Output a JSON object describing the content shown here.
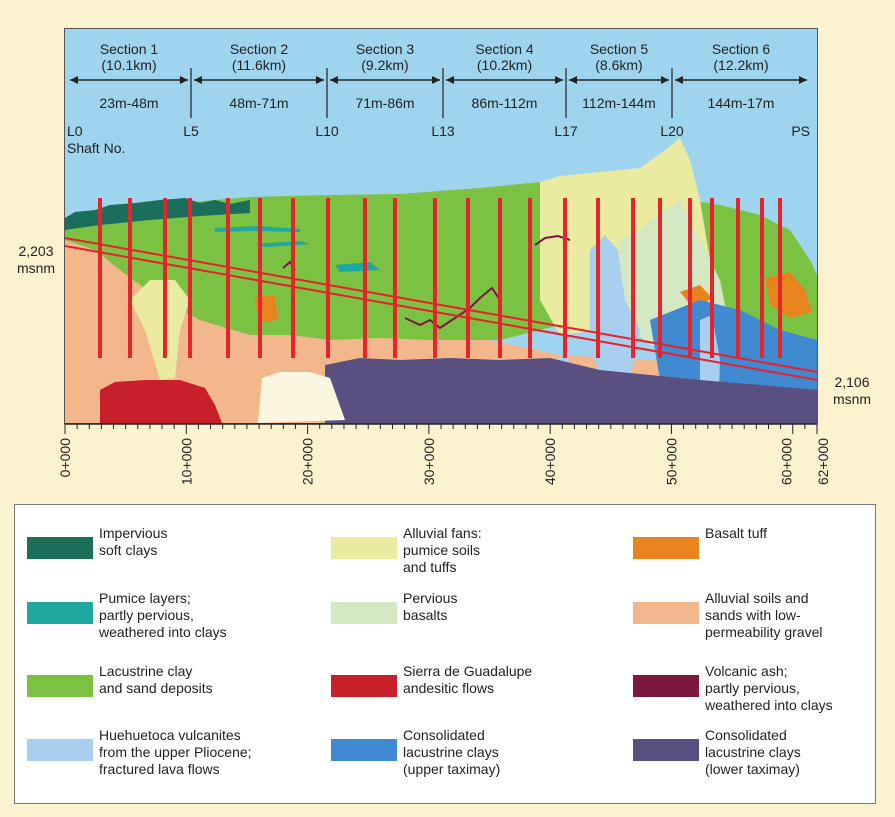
{
  "sections": [
    {
      "name": "Section 1",
      "length": "(10.1km)",
      "depth": "23m-48m"
    },
    {
      "name": "Section 2",
      "length": "(11.6km)",
      "depth": "48m-71m"
    },
    {
      "name": "Section 3",
      "length": "(9.2km)",
      "depth": "71m-86m"
    },
    {
      "name": "Section 4",
      "length": "(10.2km)",
      "depth": "86m-112m"
    },
    {
      "name": "Section 5",
      "length": "(8.6km)",
      "depth": "112m-144m"
    },
    {
      "name": "Section 6",
      "length": "(12.2km)",
      "depth": "144m-17m"
    }
  ],
  "shafts": [
    "L0",
    "L5",
    "L10",
    "L13",
    "L17",
    "L20",
    "PS"
  ],
  "shaft_caption": "Shaft No.",
  "elevations": {
    "left_value": "2,203",
    "left_unit": "msnm",
    "right_value": "2,106",
    "right_unit": "msnm"
  },
  "chainage_labels": [
    "0+000",
    "10+000",
    "20+000",
    "30+000",
    "40+000",
    "50+000",
    "60+000",
    "62+000"
  ],
  "legend": [
    {
      "label": "Impervious\nsoft clays",
      "color": "#1a6e5a"
    },
    {
      "label": "Alluvial fans:\npumice soils\nand tuffs",
      "color": "#eaeba0"
    },
    {
      "label": "Basalt tuff",
      "color": "#e8841e"
    },
    {
      "label": "Pumice layers;\npartly pervious,\nweathered into clays",
      "color": "#1fa8a0"
    },
    {
      "label": "Pervious\nbasalts",
      "color": "#d4e8c4"
    },
    {
      "label": "Alluvial soils and\nsands with low-\npermeability gravel",
      "color": "#f2b88c"
    },
    {
      "label": "Lacustrine clay\nand sand deposits",
      "color": "#7cc242"
    },
    {
      "label": "Sierra de Guadalupe\nandesitic flows",
      "color": "#c8202a"
    },
    {
      "label": "Volcanic ash;\npartly pervious,\nweathered into clays",
      "color": "#7a1840"
    },
    {
      "label": "Huehuetoca vulcanites\nfrom the upper Pliocene;\nfractured lava flows",
      "color": "#a8d0ee"
    },
    {
      "label": "Consolidated\nlacustrine clays\n(upper taximay)",
      "color": "#3f8ad0"
    },
    {
      "label": "Consolidated\nlacustrine clays\n(lower taximay)",
      "color": "#5a5080"
    }
  ]
}
